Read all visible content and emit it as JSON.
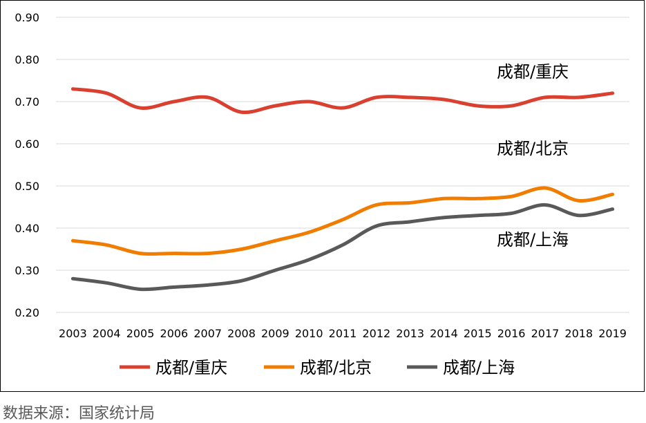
{
  "chart_data": {
    "type": "line",
    "x": [
      "2003",
      "2004",
      "2005",
      "2006",
      "2007",
      "2008",
      "2009",
      "2010",
      "2011",
      "2012",
      "2013",
      "2014",
      "2015",
      "2016",
      "2017",
      "2018",
      "2019"
    ],
    "series": [
      {
        "name": "成都/重庆",
        "color": "#d9402f",
        "values": [
          0.73,
          0.72,
          0.685,
          0.7,
          0.71,
          0.675,
          0.69,
          0.7,
          0.685,
          0.71,
          0.71,
          0.705,
          0.69,
          0.69,
          0.71,
          0.71,
          0.72
        ]
      },
      {
        "name": "成都/北京",
        "color": "#f07c00",
        "values": [
          0.37,
          0.36,
          0.34,
          0.34,
          0.34,
          0.35,
          0.37,
          0.39,
          0.42,
          0.455,
          0.46,
          0.47,
          0.47,
          0.475,
          0.495,
          0.465,
          0.48
        ]
      },
      {
        "name": "成都/上海",
        "color": "#595959",
        "values": [
          0.28,
          0.27,
          0.255,
          0.26,
          0.265,
          0.275,
          0.3,
          0.325,
          0.36,
          0.405,
          0.415,
          0.425,
          0.43,
          0.435,
          0.455,
          0.43,
          0.445
        ]
      }
    ],
    "ylim": [
      0.2,
      0.9
    ],
    "yticks": [
      "0.20",
      "0.30",
      "0.40",
      "0.50",
      "0.60",
      "0.70",
      "0.80",
      "0.90"
    ],
    "grid": true,
    "legend": "bottom",
    "annotations": [
      "成都/重庆",
      "成都/北京",
      "成都/上海"
    ]
  },
  "source_note": "数据来源：国家统计局"
}
